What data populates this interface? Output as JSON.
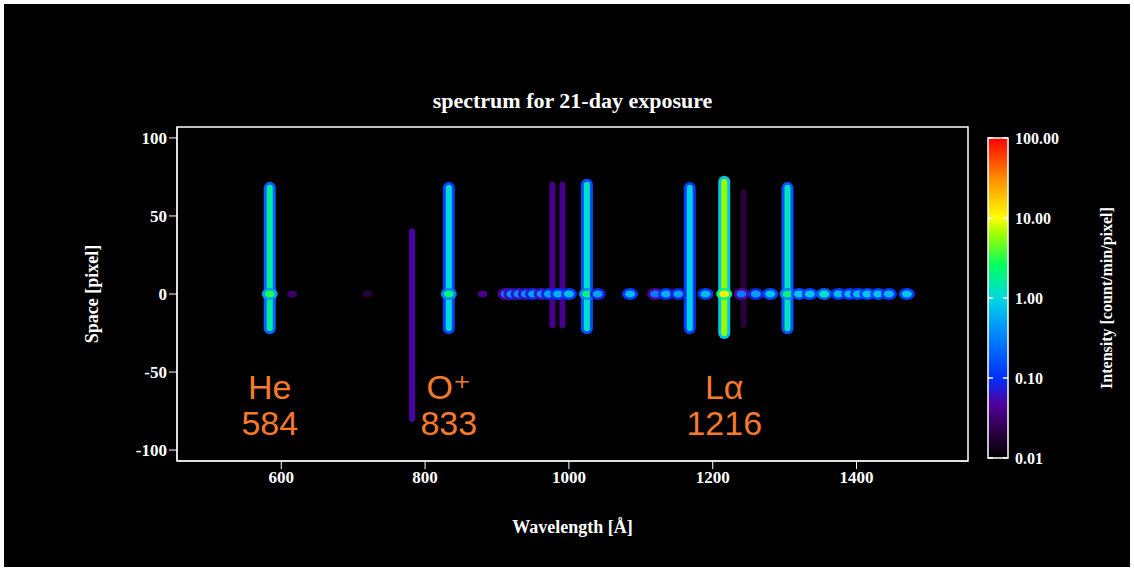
{
  "chart_data": {
    "type": "spectral_image",
    "title": "spectrum for 21-day exposure",
    "x_label": "Wavelength [Å]",
    "y_label": "Space [pixel]",
    "xlim": [
      455,
      1555
    ],
    "xticks": [
      600,
      800,
      1000,
      1200,
      1400
    ],
    "ylim": [
      -107,
      107
    ],
    "yticks": [
      -100,
      -50,
      0,
      50,
      100
    ],
    "emission_lines": [
      {
        "wavelength": 584,
        "space_range": [
          -22,
          68
        ],
        "intensity": 1.6
      },
      {
        "wavelength": 782,
        "space_range": [
          -80,
          40
        ],
        "intensity": 0.05
      },
      {
        "wavelength": 833,
        "space_range": [
          -22,
          68
        ],
        "intensity": 1.0
      },
      {
        "wavelength": 977,
        "space_range": [
          -20,
          70
        ],
        "intensity": 0.04
      },
      {
        "wavelength": 991,
        "space_range": [
          -20,
          70
        ],
        "intensity": 0.04
      },
      {
        "wavelength": 1025,
        "space_range": [
          -22,
          70
        ],
        "intensity": 1.2
      },
      {
        "wavelength": 1168,
        "space_range": [
          -22,
          68
        ],
        "intensity": 0.9
      },
      {
        "wavelength": 1216,
        "space_range": [
          -25,
          72
        ],
        "intensity": 6
      },
      {
        "wavelength": 1243,
        "space_range": [
          -20,
          65
        ],
        "intensity": 0.02
      },
      {
        "wavelength": 1304,
        "space_range": [
          -22,
          68
        ],
        "intensity": 1.3
      }
    ],
    "point_source": {
      "space": 0,
      "wavelengths": [
        584,
        615,
        720,
        833,
        880,
        912,
        920,
        930,
        940,
        950,
        962,
        972,
        985,
        1000,
        1025,
        1040,
        1085,
        1120,
        1135,
        1152,
        1190,
        1216,
        1240,
        1260,
        1280,
        1304,
        1320,
        1335,
        1355,
        1375,
        1390,
        1402,
        1415,
        1430,
        1445,
        1470
      ],
      "intensities": [
        3,
        0.03,
        0.02,
        2,
        0.04,
        0.3,
        0.4,
        0.4,
        0.4,
        0.5,
        0.4,
        0.5,
        0.6,
        0.7,
        2,
        0.5,
        0.7,
        0.3,
        0.6,
        0.5,
        0.7,
        12,
        0.3,
        0.5,
        0.8,
        2,
        0.8,
        0.8,
        1.2,
        0.7,
        0.7,
        0.7,
        0.8,
        0.8,
        0.7,
        0.8
      ]
    },
    "annotations": [
      {
        "label": "He",
        "wavelength": 584
      },
      {
        "label": "O⁺",
        "wavelength": 833
      },
      {
        "label": "Lα",
        "wavelength": 1216
      }
    ],
    "colorbar": {
      "label": "Intensity [count/min/pixel]",
      "log": true,
      "range": [
        0.01,
        100
      ],
      "ticks": [
        0.01,
        {
          "value": 0.1,
          "label": "0.10"
        },
        {
          "value": 1,
          "label": "1.00"
        },
        {
          "value": 10,
          "label": "10.00"
        },
        {
          "value": 100,
          "label": "100.00"
        }
      ]
    }
  }
}
